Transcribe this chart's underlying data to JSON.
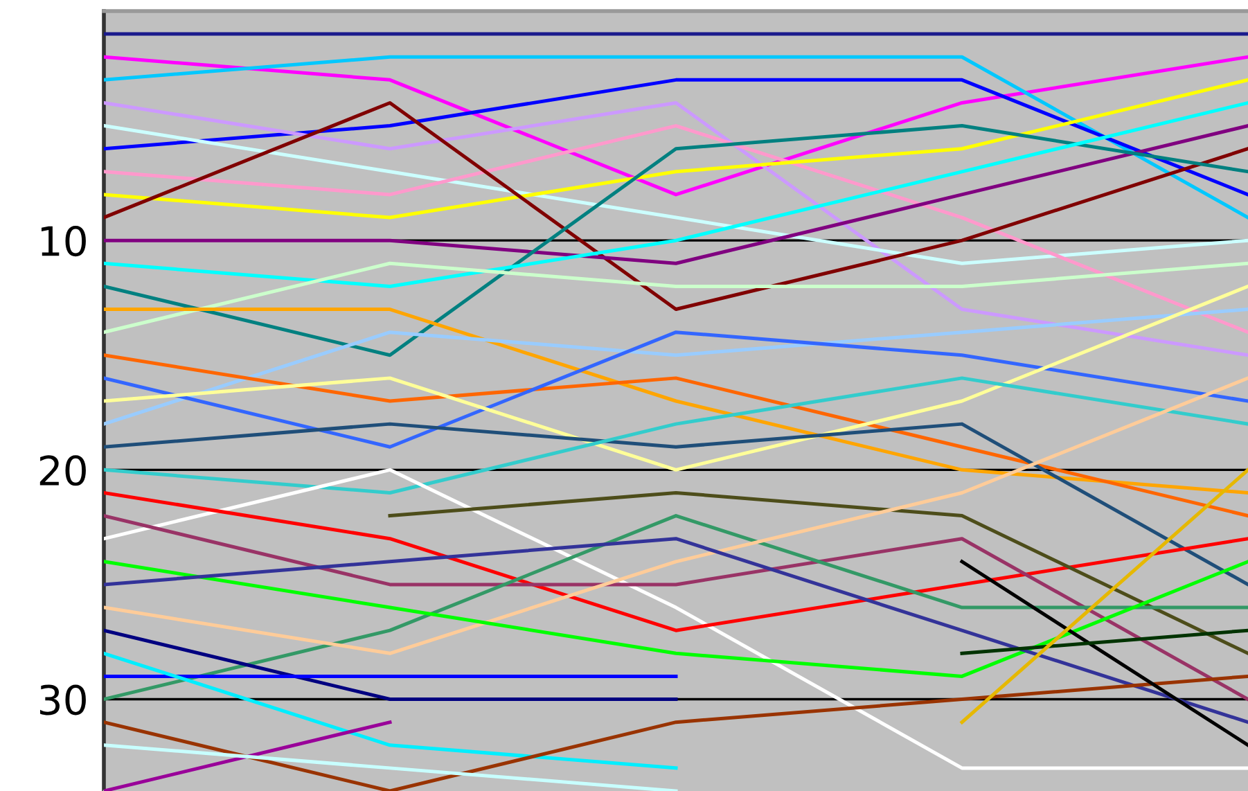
{
  "chart_data": {
    "type": "line",
    "categories": [
      null,
      null,
      null,
      null,
      null
    ],
    "ylim": [
      34,
      0
    ],
    "yticks": [
      10,
      20,
      30
    ],
    "tick_labels": "y",
    "ref_lines": [
      {
        "axis": "y",
        "value": 10,
        "color": "#000000"
      },
      {
        "axis": "y",
        "value": 20,
        "color": "#000000"
      },
      {
        "axis": "y",
        "value": 30,
        "color": "#000000"
      }
    ],
    "marker": "none",
    "line_style": "solid",
    "series": [
      {
        "color": "#1a1a8c",
        "values": [
          1,
          1,
          1,
          1,
          1
        ]
      },
      {
        "color": "#ff00ff",
        "values": [
          2,
          3,
          8,
          4,
          2
        ]
      },
      {
        "color": "#00c8ff",
        "values": [
          3,
          2,
          2,
          2,
          9
        ]
      },
      {
        "color": "#0000ff",
        "values": [
          6,
          5,
          3,
          3,
          8
        ]
      },
      {
        "color": "#cc99ff",
        "values": [
          4,
          6,
          4,
          13,
          15
        ]
      },
      {
        "color": "#ccffff",
        "values": [
          5,
          7,
          9,
          11,
          10
        ]
      },
      {
        "color": "#ff99cc",
        "values": [
          7,
          8,
          5,
          9,
          14
        ]
      },
      {
        "color": "#ffff00",
        "values": [
          8,
          9,
          7,
          6,
          3
        ]
      },
      {
        "color": "#800000",
        "values": [
          9,
          4,
          13,
          10,
          6
        ]
      },
      {
        "color": "#800080",
        "values": [
          10,
          10,
          11,
          8,
          5
        ]
      },
      {
        "color": "#008080",
        "values": [
          12,
          15,
          6,
          5,
          7
        ]
      },
      {
        "color": "#00ffff",
        "values": [
          11,
          12,
          10,
          7,
          4
        ]
      },
      {
        "color": "#ccffcc",
        "values": [
          14,
          11,
          12,
          12,
          11
        ]
      },
      {
        "color": "#ffa500",
        "values": [
          13,
          13,
          17,
          20,
          21
        ]
      },
      {
        "color": "#99ccff",
        "values": [
          18,
          14,
          15,
          14,
          13
        ]
      },
      {
        "color": "#ff6600",
        "values": [
          15,
          17,
          16,
          19,
          22
        ]
      },
      {
        "color": "#3366ff",
        "values": [
          16,
          19,
          14,
          15,
          17
        ]
      },
      {
        "color": "#ffff99",
        "values": [
          17,
          16,
          20,
          17,
          12
        ]
      },
      {
        "color": "#1f4e79",
        "values": [
          19,
          18,
          19,
          18,
          25
        ]
      },
      {
        "color": "#33cccc",
        "values": [
          20,
          21,
          18,
          16,
          18
        ]
      },
      {
        "color": "#ffffff",
        "values": [
          23,
          20,
          26,
          33,
          33
        ]
      },
      {
        "color": "#ff0000",
        "values": [
          21,
          23,
          27,
          25,
          23
        ]
      },
      {
        "color": "#4d4d1a",
        "values": [
          null,
          22,
          21,
          22,
          28
        ]
      },
      {
        "color": "#993366",
        "values": [
          22,
          25,
          25,
          23,
          30
        ]
      },
      {
        "color": "#339966",
        "values": [
          30,
          27,
          22,
          26,
          26
        ]
      },
      {
        "color": "#ffcc99",
        "values": [
          26,
          28,
          24,
          21,
          16
        ]
      },
      {
        "color": "#00ff00",
        "values": [
          24,
          26,
          28,
          29,
          24
        ]
      },
      {
        "color": "#333399",
        "values": [
          25,
          24,
          23,
          27,
          31
        ]
      },
      {
        "color": "#000080",
        "values": [
          27,
          30,
          30,
          null,
          null
        ]
      },
      {
        "color": "#0000ff",
        "values": [
          29,
          29,
          29,
          null,
          null
        ]
      },
      {
        "color": "#00eeff",
        "values": [
          28,
          32,
          33,
          null,
          null
        ]
      },
      {
        "color": "#993300",
        "values": [
          31,
          34,
          31,
          30,
          29
        ]
      },
      {
        "color": "#990099",
        "values": [
          34,
          31,
          null,
          null,
          null
        ]
      },
      {
        "color": "#c8ffff",
        "values": [
          32,
          33,
          34,
          null,
          null
        ]
      },
      {
        "color": "#000000",
        "values": [
          null,
          null,
          null,
          24,
          32
        ]
      },
      {
        "color": "#003300",
        "values": [
          null,
          null,
          null,
          28,
          27
        ]
      },
      {
        "color": "#e6b800",
        "values": [
          null,
          null,
          null,
          31,
          20
        ]
      }
    ]
  }
}
